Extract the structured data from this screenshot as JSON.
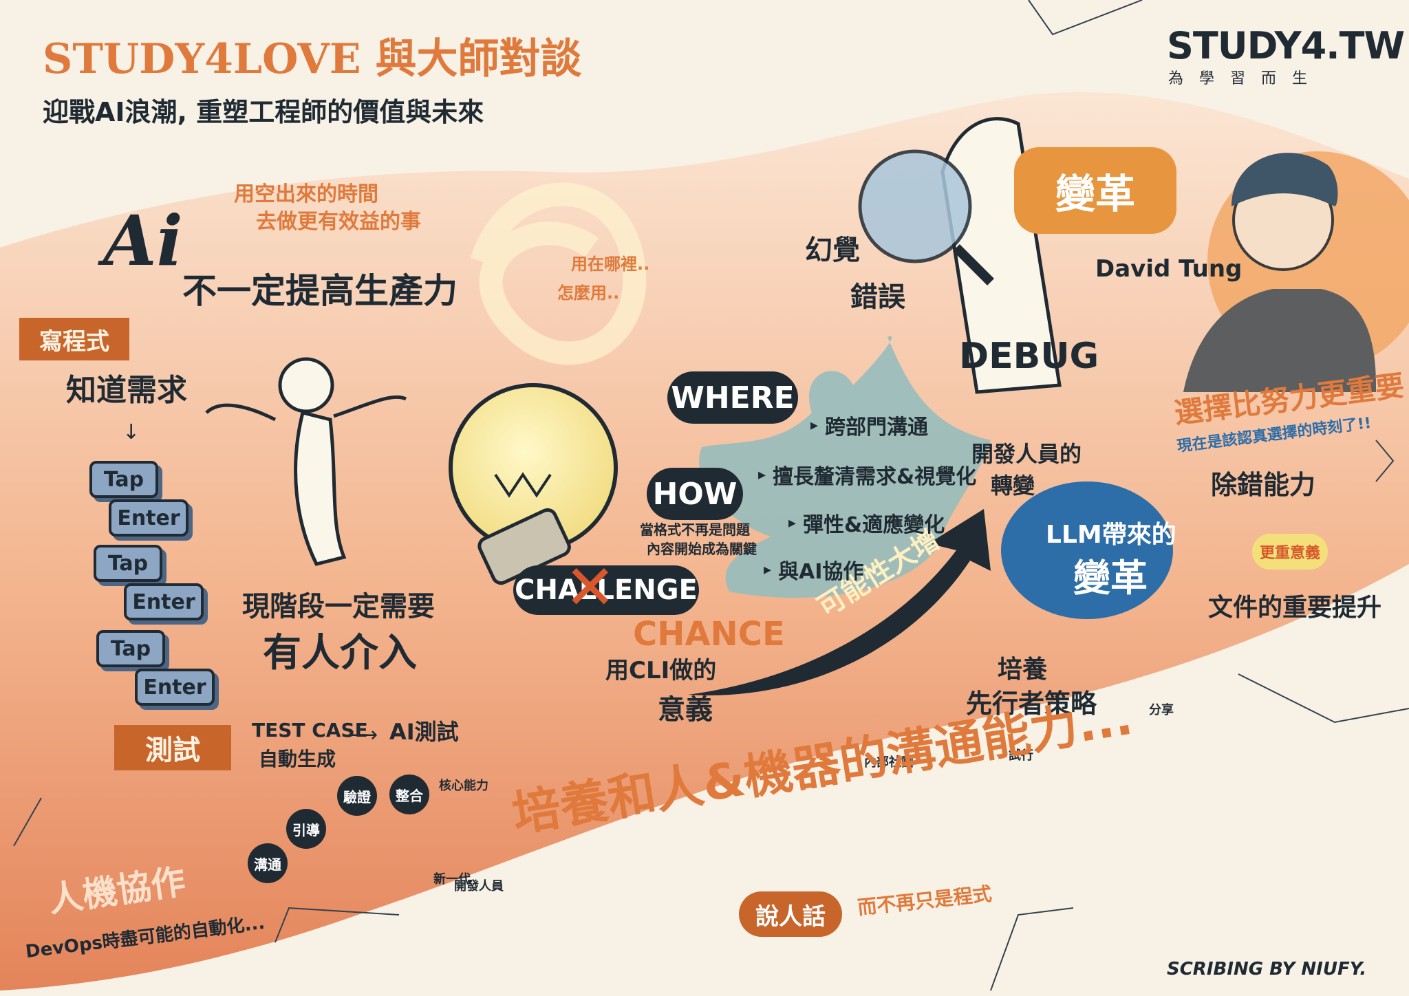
{
  "title": {
    "main": "STUDY4LOVE 與大師對談",
    "subtitle": "迎戰AI浪潮, 重塑工程師的價值與未來"
  },
  "brand": {
    "logo": "STUDY4.TW",
    "tagline": "為 學 習 而 生"
  },
  "ai_section": {
    "ai_text": "Ai",
    "note": [
      "用空出來的時間",
      "去做更有效益的事"
    ],
    "headline": "不一定提高生產力",
    "where_how": [
      "用在哪裡..",
      "怎麼用.."
    ]
  },
  "left_panel": {
    "ribbon_code": "寫程式",
    "need": "知道需求",
    "keys": [
      "Tap",
      "Enter",
      "Tap",
      "Enter",
      "Tap",
      "Enter"
    ],
    "human_needed": [
      "現階段一定需要",
      "有人介入"
    ],
    "ribbon_test": "測試",
    "test_case": [
      "TEST CASE",
      "自動生成"
    ],
    "ai_test": "AI測試"
  },
  "center": {
    "where": "WHERE",
    "how": "HOW",
    "how_note": [
      "當格式不再是問題",
      "內容開始成為關鍵"
    ],
    "challenge": "CHALLENGE",
    "chance": "CHANCE",
    "cli": [
      "用CLI做的",
      "意義"
    ],
    "possibility": "可能性大增"
  },
  "skills_list": [
    "跨部門溝通",
    "擅長釐清需求&視覺化",
    "彈性&適應變化",
    "與AI協作"
  ],
  "debug_section": {
    "hallucination": "幻覺",
    "error": "錯誤",
    "debug": "DEBUG",
    "change_bubble": "變革"
  },
  "speaker": {
    "name": "David Tung",
    "quote": "選擇比努力更重要",
    "subquote": "現在是該認真選擇的時刻了!!"
  },
  "llm_map": {
    "center": [
      "LLM帶來的",
      "變革"
    ],
    "branches": [
      "開發人員的",
      "轉變",
      "除錯能力",
      "更重意義",
      "文件的重要提升",
      "培養",
      "先行者策略"
    ],
    "figures": [
      "內部社團",
      "試行",
      "分享"
    ]
  },
  "bottom": {
    "chain": [
      "溝通",
      "引導",
      "驗證",
      "整合"
    ],
    "core": "核心能力",
    "new_gen": "新一代",
    "developer": "開發人員",
    "human_machine": "人機協作",
    "devops": "DevOps時盡可能的自動化...",
    "banner": "培養和人&機器的溝通能力...",
    "speak_human": "說人話",
    "not_code": "而不再只是程式"
  },
  "credit": "SCRIBING BY NIUFY."
}
